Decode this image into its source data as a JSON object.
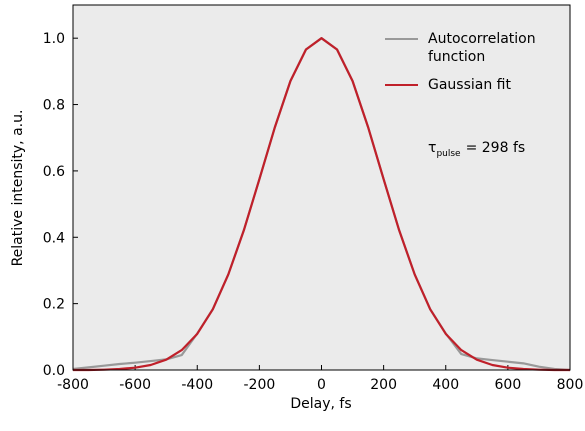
{
  "chart_data": {
    "type": "line",
    "x_label": "Delay, fs",
    "y_label": "Relative intensity, a.u.",
    "annotation": {
      "symbol": "τ",
      "subscript": "pulse",
      "text": "= 298 fs"
    },
    "x": [
      -800,
      -750,
      -700,
      -650,
      -600,
      -550,
      -500,
      -450,
      -400,
      -350,
      -300,
      -250,
      -200,
      -150,
      -100,
      -50,
      0,
      50,
      100,
      150,
      200,
      250,
      300,
      350,
      400,
      450,
      500,
      550,
      600,
      650,
      700,
      750,
      800
    ],
    "series": [
      {
        "name": "Autocorrelation function",
        "color": "#999999",
        "values": [
          0.003,
          0.008,
          0.013,
          0.018,
          0.022,
          0.027,
          0.032,
          0.045,
          0.11,
          0.183,
          0.288,
          0.421,
          0.575,
          0.732,
          0.871,
          0.966,
          1.0,
          0.966,
          0.871,
          0.732,
          0.575,
          0.421,
          0.288,
          0.183,
          0.11,
          0.048,
          0.035,
          0.03,
          0.025,
          0.02,
          0.01,
          0.003,
          0.0
        ]
      },
      {
        "name": "Gaussian fit",
        "color": "#c0202a",
        "values": [
          0.0,
          0.0,
          0.001,
          0.003,
          0.007,
          0.015,
          0.031,
          0.06,
          0.109,
          0.183,
          0.288,
          0.421,
          0.575,
          0.732,
          0.871,
          0.966,
          1.0,
          0.966,
          0.871,
          0.732,
          0.575,
          0.421,
          0.288,
          0.183,
          0.109,
          0.06,
          0.031,
          0.015,
          0.007,
          0.003,
          0.001,
          0.0,
          0.0
        ]
      }
    ],
    "xlim": [
      -800,
      800
    ],
    "xticks": [
      -800,
      -600,
      -400,
      -200,
      0,
      200,
      400,
      600,
      800
    ],
    "ylim": [
      0,
      1.1
    ],
    "yticks": [
      {
        "value": 0,
        "label": "0.0"
      },
      {
        "value": 0.2,
        "label": "0.2"
      },
      {
        "value": 0.4,
        "label": "0.4"
      },
      {
        "value": 0.6,
        "label": "0.6"
      },
      {
        "value": 0.8,
        "label": "0.8"
      },
      {
        "value": 1.0,
        "label": "1.0"
      }
    ],
    "legend": "upper right"
  }
}
